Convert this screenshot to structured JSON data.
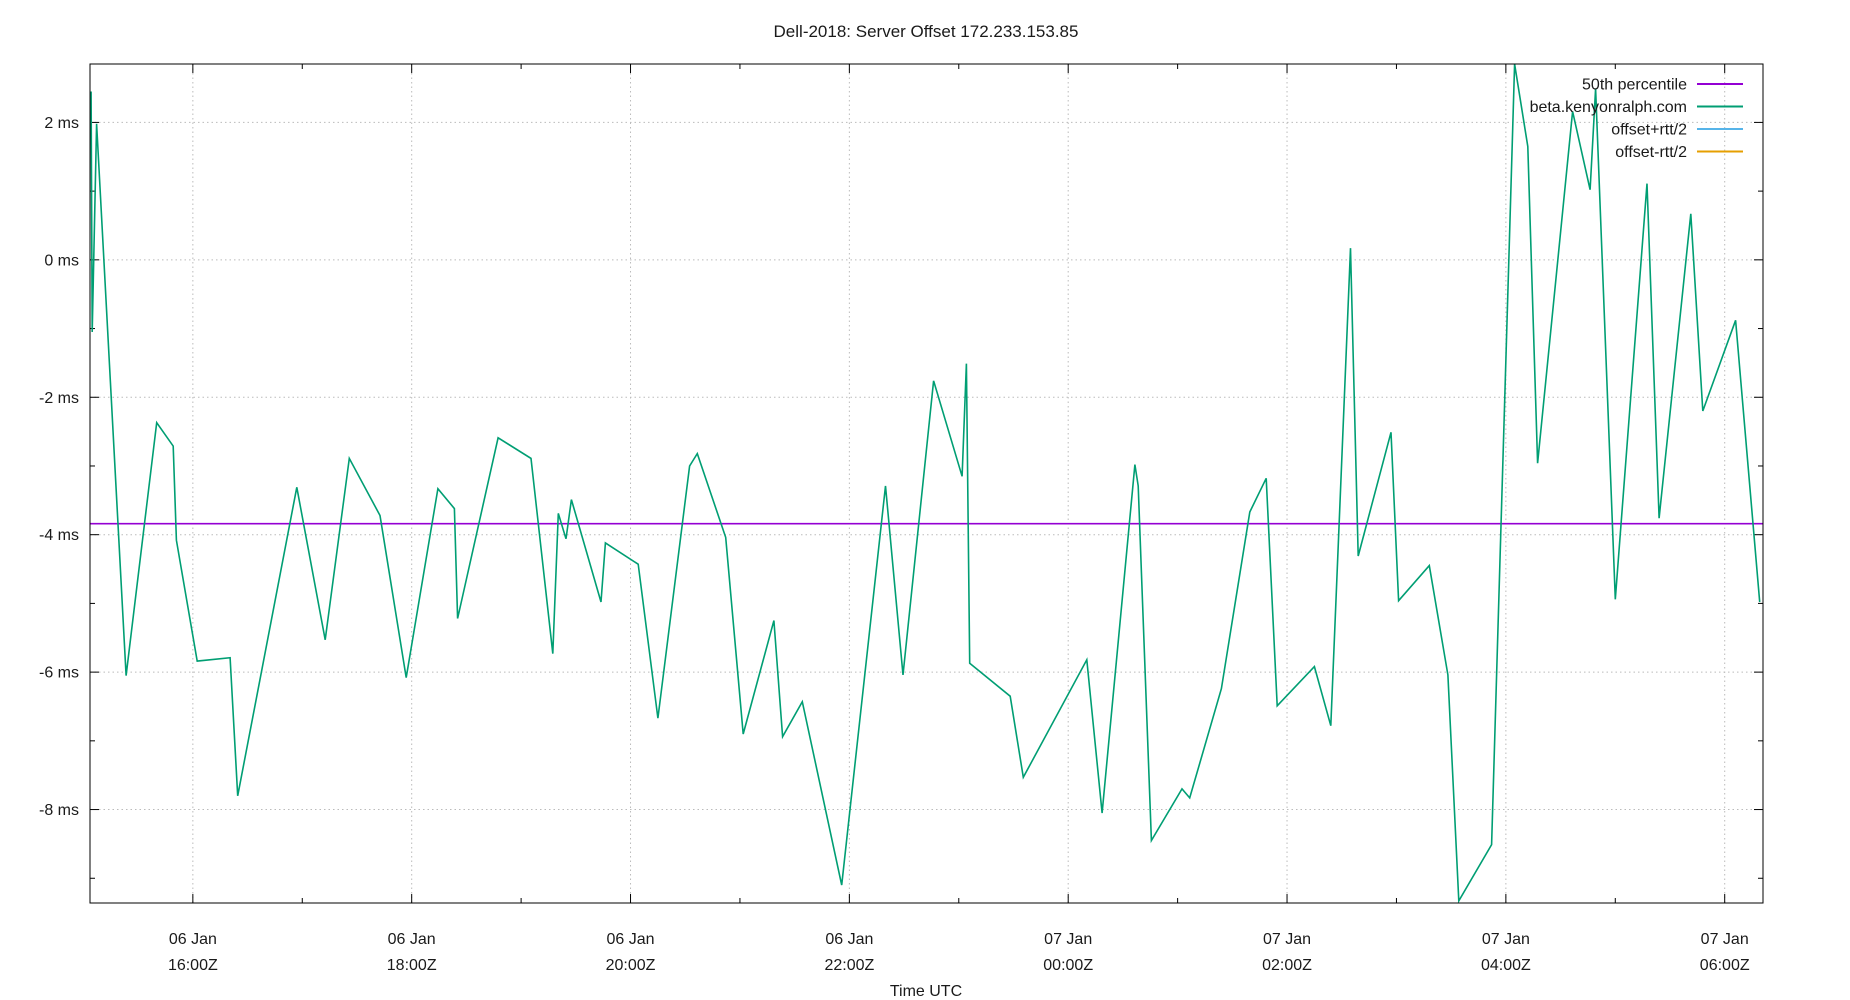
{
  "title": "Dell-2018: Server Offset 172.233.153.85",
  "xlabel": "Time UTC",
  "colors": {
    "background": "#ffffff",
    "frame": "#000000",
    "grid": "#bbbbbb",
    "text": "#1a1a1a",
    "percentile_line": "#9400D3",
    "series_green": "#009E73",
    "offset_plus_rtt": "#56B4E9",
    "offset_minus_rtt": "#E69F00"
  },
  "legend": {
    "position": "top-right-inside",
    "entries": [
      {
        "label": "50th percentile",
        "color": "#9400D3"
      },
      {
        "label": "beta.kenyonralph.com",
        "color": "#009E73"
      },
      {
        "label": "offset+rtt/2",
        "color": "#56B4E9"
      },
      {
        "label": "offset-rtt/2",
        "color": "#E69F00"
      }
    ]
  },
  "chart_data": {
    "type": "line",
    "title": "Dell-2018: Server Offset 172.233.153.85",
    "xlabel": "Time UTC",
    "ylabel": "",
    "x_unit": "hours UTC (x=24 corresponds to 07 Jan 00:00Z)",
    "xlim": [
      15.06,
      30.35
    ],
    "ylim": [
      -9.36,
      2.85
    ],
    "grid": true,
    "legend_position": "top-right",
    "x_ticks": [
      {
        "value": 16,
        "label": [
          "06 Jan",
          "16:00Z"
        ]
      },
      {
        "value": 18,
        "label": [
          "06 Jan",
          "18:00Z"
        ]
      },
      {
        "value": 20,
        "label": [
          "06 Jan",
          "20:00Z"
        ]
      },
      {
        "value": 22,
        "label": [
          "06 Jan",
          "22:00Z"
        ]
      },
      {
        "value": 24,
        "label": [
          "07 Jan",
          "00:00Z"
        ]
      },
      {
        "value": 26,
        "label": [
          "07 Jan",
          "02:00Z"
        ]
      },
      {
        "value": 28,
        "label": [
          "07 Jan",
          "04:00Z"
        ]
      },
      {
        "value": 30,
        "label": [
          "07 Jan",
          "06:00Z"
        ]
      }
    ],
    "x_minor_ticks": [
      17,
      19,
      21,
      23,
      25,
      27,
      29
    ],
    "y_ticks": [
      {
        "value": 2,
        "label": "2 ms"
      },
      {
        "value": 0,
        "label": "0 ms"
      },
      {
        "value": -2,
        "label": "-2 ms"
      },
      {
        "value": -4,
        "label": "-4 ms"
      },
      {
        "value": -6,
        "label": "-6 ms"
      },
      {
        "value": -8,
        "label": "-8 ms"
      }
    ],
    "y_minor_ticks": [
      1,
      -1,
      -3,
      -5,
      -7,
      -9
    ],
    "series": [
      {
        "name": "50th percentile",
        "style": "hline",
        "color": "#9400D3",
        "value": -3.84
      },
      {
        "name": "beta.kenyonralph.com",
        "style": "line",
        "color": "#009E73",
        "points": [
          [
            15.07,
            2.45
          ],
          [
            15.08,
            -1.05
          ],
          [
            15.12,
            1.98
          ],
          [
            15.39,
            -6.05
          ],
          [
            15.67,
            -2.37
          ],
          [
            15.82,
            -2.71
          ],
          [
            15.85,
            -4.08
          ],
          [
            16.04,
            -5.84
          ],
          [
            16.34,
            -5.79
          ],
          [
            16.41,
            -7.8
          ],
          [
            16.95,
            -3.31
          ],
          [
            17.21,
            -5.53
          ],
          [
            17.43,
            -2.89
          ],
          [
            17.71,
            -3.72
          ],
          [
            17.95,
            -6.08
          ],
          [
            18.24,
            -3.33
          ],
          [
            18.39,
            -3.62
          ],
          [
            18.42,
            -5.22
          ],
          [
            18.79,
            -2.59
          ],
          [
            19.09,
            -2.89
          ],
          [
            19.29,
            -5.73
          ],
          [
            19.34,
            -3.69
          ],
          [
            19.41,
            -4.06
          ],
          [
            19.46,
            -3.49
          ],
          [
            19.73,
            -4.98
          ],
          [
            19.77,
            -4.12
          ],
          [
            20.07,
            -4.43
          ],
          [
            20.25,
            -6.67
          ],
          [
            20.54,
            -3.0
          ],
          [
            20.61,
            -2.82
          ],
          [
            20.87,
            -4.04
          ],
          [
            21.03,
            -6.9
          ],
          [
            21.31,
            -5.25
          ],
          [
            21.39,
            -6.94
          ],
          [
            21.57,
            -6.43
          ],
          [
            21.93,
            -9.1
          ],
          [
            22.33,
            -3.29
          ],
          [
            22.49,
            -6.04
          ],
          [
            22.77,
            -1.76
          ],
          [
            23.03,
            -3.15
          ],
          [
            23.07,
            -1.51
          ],
          [
            23.1,
            -5.87
          ],
          [
            23.47,
            -6.35
          ],
          [
            23.59,
            -7.53
          ],
          [
            24.17,
            -5.82
          ],
          [
            24.31,
            -8.05
          ],
          [
            24.61,
            -2.98
          ],
          [
            24.64,
            -3.29
          ],
          [
            24.76,
            -8.45
          ],
          [
            25.04,
            -7.7
          ],
          [
            25.11,
            -7.83
          ],
          [
            25.4,
            -6.24
          ],
          [
            25.66,
            -3.67
          ],
          [
            25.81,
            -3.18
          ],
          [
            25.91,
            -6.49
          ],
          [
            26.25,
            -5.92
          ],
          [
            26.4,
            -6.78
          ],
          [
            26.58,
            0.17
          ],
          [
            26.65,
            -4.31
          ],
          [
            26.95,
            -2.51
          ],
          [
            27.02,
            -4.96
          ],
          [
            27.3,
            -4.45
          ],
          [
            27.47,
            -6.04
          ],
          [
            27.57,
            -9.33
          ],
          [
            27.87,
            -8.51
          ],
          [
            28.08,
            2.85
          ],
          [
            28.2,
            1.65
          ],
          [
            28.29,
            -2.96
          ],
          [
            28.61,
            2.16
          ],
          [
            28.77,
            1.02
          ],
          [
            28.82,
            2.49
          ],
          [
            29.0,
            -4.94
          ],
          [
            29.29,
            1.11
          ],
          [
            29.4,
            -3.76
          ],
          [
            29.69,
            0.67
          ],
          [
            29.8,
            -2.2
          ],
          [
            30.1,
            -0.88
          ],
          [
            30.32,
            -4.98
          ]
        ]
      },
      {
        "name": "offset+rtt/2",
        "style": "line",
        "color": "#56B4E9",
        "points": []
      },
      {
        "name": "offset-rtt/2",
        "style": "line",
        "color": "#E69F00",
        "points": []
      }
    ]
  }
}
